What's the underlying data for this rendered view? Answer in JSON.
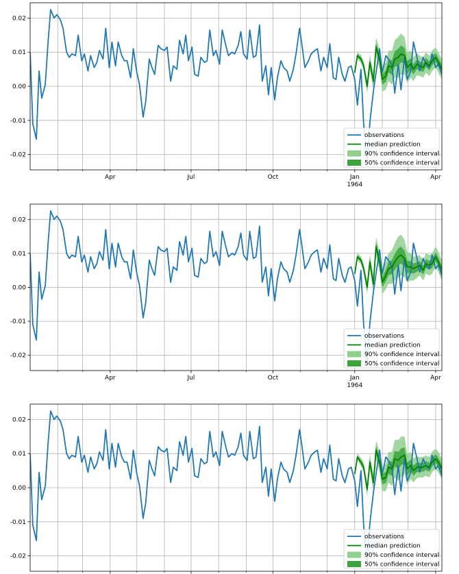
{
  "chart_data": [
    {
      "type": "line",
      "title": "",
      "xlabel": "",
      "ylabel": "",
      "ylim": [
        -0.0245,
        0.0245
      ],
      "yticks": [
        -0.02,
        -0.01,
        0.0,
        0.01,
        0.02
      ],
      "ytick_labels": [
        "-0.02",
        "-0.01",
        "0.00",
        "0.01",
        "0.02"
      ],
      "xlim": [
        "1963-01-01",
        "1964-04-08"
      ],
      "xticks": [
        {
          "date": "1963-04-01",
          "label": "Apr",
          "sublabel": ""
        },
        {
          "date": "1963-07-01",
          "label": "Jul",
          "sublabel": ""
        },
        {
          "date": "1963-10-01",
          "label": "Oct",
          "sublabel": ""
        },
        {
          "date": "1964-01-01",
          "label": "Jan",
          "sublabel": "1964"
        },
        {
          "date": "1964-04-01",
          "label": "Apr",
          "sublabel": ""
        }
      ],
      "grid": true,
      "legend_position": "lower-right",
      "legend": [
        "observations",
        "median prediction",
        "90% confidence interval",
        "50% confidence interval"
      ],
      "colors": {
        "observations": "#1f77b4",
        "median": "#008000",
        "ci90": "#8fd08f",
        "ci50": "#3ca43c"
      },
      "series": [
        {
          "name": "observations",
          "x": [
            "1963-01-01",
            "1963-01-04",
            "1963-01-08",
            "1963-01-11",
            "1963-01-14",
            "1963-01-18",
            "1963-01-21",
            "1963-01-24",
            "1963-01-28",
            "1963-01-31",
            "1963-02-04",
            "1963-02-07",
            "1963-02-11",
            "1963-02-14",
            "1963-02-17",
            "1963-02-21",
            "1963-02-24",
            "1963-02-28",
            "1963-03-03",
            "1963-03-07",
            "1963-03-10",
            "1963-03-14",
            "1963-03-17",
            "1963-03-20",
            "1963-03-24",
            "1963-03-27",
            "1963-03-31",
            "1963-04-03",
            "1963-04-07",
            "1963-04-10",
            "1963-04-14",
            "1963-04-17",
            "1963-04-20",
            "1963-04-24",
            "1963-04-27",
            "1963-05-01",
            "1963-05-04",
            "1963-05-08",
            "1963-05-11",
            "1963-05-15",
            "1963-05-18",
            "1963-05-21",
            "1963-05-25",
            "1963-05-28",
            "1963-06-01",
            "1963-06-04",
            "1963-06-08",
            "1963-06-11",
            "1963-06-15",
            "1963-06-18",
            "1963-06-22",
            "1963-06-25",
            "1963-06-28",
            "1963-07-02",
            "1963-07-05",
            "1963-07-09",
            "1963-07-12",
            "1963-07-16",
            "1963-07-19",
            "1963-07-22",
            "1963-07-26",
            "1963-07-29",
            "1963-08-02",
            "1963-08-05",
            "1963-08-09",
            "1963-08-12",
            "1963-08-16",
            "1963-08-19",
            "1963-08-23",
            "1963-08-26",
            "1963-08-29",
            "1963-09-02",
            "1963-09-05",
            "1963-09-09",
            "1963-09-12",
            "1963-09-16",
            "1963-09-19",
            "1963-09-23",
            "1963-09-26",
            "1963-09-29",
            "1963-10-03",
            "1963-10-06",
            "1963-10-10",
            "1963-10-13",
            "1963-10-17",
            "1963-10-20",
            "1963-10-24",
            "1963-10-27",
            "1963-10-31",
            "1963-11-03",
            "1963-11-06",
            "1963-11-10",
            "1963-11-13",
            "1963-11-17",
            "1963-11-20",
            "1963-11-24",
            "1963-11-27",
            "1963-12-01",
            "1963-12-04",
            "1963-12-08",
            "1963-12-11",
            "1963-12-14",
            "1963-12-18",
            "1963-12-21",
            "1963-12-25",
            "1963-12-28",
            "1964-01-01",
            "1964-01-04",
            "1964-01-08",
            "1964-01-11",
            "1964-01-15",
            "1964-01-18",
            "1964-01-22",
            "1964-01-25",
            "1964-01-29",
            "1964-02-01",
            "1964-02-05",
            "1964-02-08",
            "1964-02-12",
            "1964-02-15",
            "1964-02-19",
            "1964-02-22",
            "1964-02-26",
            "1964-02-29",
            "1964-03-04",
            "1964-03-07",
            "1964-03-11",
            "1964-03-14",
            "1964-03-18",
            "1964-03-21",
            "1964-03-25",
            "1964-03-28",
            "1964-04-01",
            "1964-04-04",
            "1964-04-08"
          ],
          "values": [
            0.01,
            -0.011,
            -0.0155,
            0.0045,
            -0.0035,
            0.0005,
            0.0125,
            0.0225,
            0.02,
            0.021,
            0.0195,
            0.017,
            0.01,
            0.0085,
            0.0095,
            0.009,
            0.015,
            0.0075,
            0.0095,
            0.0045,
            0.009,
            0.0055,
            0.007,
            0.0105,
            0.008,
            0.017,
            0.0055,
            0.013,
            0.006,
            0.013,
            0.009,
            0.0075,
            0.0075,
            0.0025,
            0.011,
            0.004,
            0.0005,
            -0.009,
            -0.0045,
            0.008,
            0.0055,
            0.0035,
            0.012,
            0.011,
            0.0105,
            0.0115,
            0.0015,
            0.006,
            0.005,
            0.0135,
            0.0095,
            0.015,
            0.0075,
            0.0115,
            0.0035,
            0.003,
            0.0085,
            0.007,
            0.0075,
            0.0165,
            0.009,
            0.0105,
            0.0065,
            0.0165,
            0.012,
            0.009,
            0.01,
            0.0095,
            0.012,
            0.016,
            0.0095,
            0.008,
            0.0165,
            0.0085,
            0.009,
            0.018,
            0.0015,
            0.006,
            -0.0025,
            0.0055,
            -0.004,
            0.0025,
            0.0075,
            0.0055,
            0.0045,
            0.0015,
            0.005,
            0.0095,
            0.017,
            0.0115,
            0.0055,
            0.0075,
            0.0095,
            0.0105,
            0.011,
            0.0045,
            0.0085,
            0.0055,
            0.0125,
            0.0025,
            0.002,
            0.0085,
            0.0035,
            0.0015,
            0.0055,
            0.006,
            0.002,
            -0.0055,
            0.005,
            -0.011,
            -0.022,
            -0.0105,
            -0.0015,
            0.004,
            0.011,
            0.004,
            0.009,
            0.008,
            0.006,
            -0.002,
            0.0065,
            -0.001,
            0.0085,
            0.002,
            0.0045,
            0.013,
            0.0085,
            0.0045,
            0.0085,
            0.0065,
            0.0055,
            0.0095,
            0.0055,
            0.0065,
            0.0035
          ]
        },
        {
          "name": "median prediction",
          "x": [
            "1964-01-01",
            "1964-01-04",
            "1964-01-08",
            "1964-01-11",
            "1964-01-15",
            "1964-01-18",
            "1964-01-22",
            "1964-01-25",
            "1964-01-29",
            "1964-02-01",
            "1964-02-05",
            "1964-02-08",
            "1964-02-12",
            "1964-02-15",
            "1964-02-19",
            "1964-02-22",
            "1964-02-26",
            "1964-02-29",
            "1964-03-04",
            "1964-03-07",
            "1964-03-11",
            "1964-03-14",
            "1964-03-18",
            "1964-03-21",
            "1964-03-25",
            "1964-03-28",
            "1964-04-01",
            "1964-04-04",
            "1964-04-08"
          ],
          "values": [
            0.004,
            0.009,
            0.008,
            0.006,
            0.0,
            0.007,
            0.0015,
            0.0115,
            0.008,
            0.002,
            0.003,
            0.006,
            0.0055,
            0.008,
            0.0085,
            0.0095,
            0.009,
            0.0055,
            0.0065,
            0.005,
            0.0065,
            0.006,
            0.0055,
            0.007,
            0.006,
            0.0075,
            0.0085,
            0.007,
            0.005
          ]
        }
      ]
    },
    {
      "type": "line",
      "title": "",
      "xlabel": "",
      "ylabel": "",
      "ylim": [
        -0.0245,
        0.0245
      ],
      "yticks": [
        -0.02,
        -0.01,
        0.0,
        0.01,
        0.02
      ],
      "ytick_labels": [
        "-0.02",
        "-0.01",
        "0.00",
        "0.01",
        "0.02"
      ],
      "xlim": [
        "1963-01-01",
        "1964-04-08"
      ],
      "xticks": [
        {
          "date": "1963-04-01",
          "label": "Apr",
          "sublabel": ""
        },
        {
          "date": "1963-07-01",
          "label": "Jul",
          "sublabel": ""
        },
        {
          "date": "1963-10-01",
          "label": "Oct",
          "sublabel": ""
        },
        {
          "date": "1964-01-01",
          "label": "Jan",
          "sublabel": "1964"
        },
        {
          "date": "1964-04-01",
          "label": "Apr",
          "sublabel": ""
        }
      ],
      "grid": true,
      "legend_position": "lower-right",
      "legend": [
        "observations",
        "median prediction",
        "90% confidence interval",
        "50% confidence interval"
      ],
      "colors": {
        "observations": "#1f77b4",
        "median": "#008000",
        "ci90": "#8fd08f",
        "ci50": "#3ca43c"
      },
      "series": [
        {
          "name": "observations",
          "x": "same as chart 1",
          "values": "same as chart 1"
        },
        {
          "name": "median prediction",
          "x": [
            "1964-01-01",
            "1964-01-04",
            "1964-01-08",
            "1964-01-11",
            "1964-01-15",
            "1964-01-18",
            "1964-01-22",
            "1964-01-25",
            "1964-01-29",
            "1964-02-01",
            "1964-02-05",
            "1964-02-08",
            "1964-02-12",
            "1964-02-15",
            "1964-02-19",
            "1964-02-22",
            "1964-02-26",
            "1964-02-29",
            "1964-03-04",
            "1964-03-07",
            "1964-03-11",
            "1964-03-14",
            "1964-03-18",
            "1964-03-21",
            "1964-03-25",
            "1964-03-28",
            "1964-04-01",
            "1964-04-04",
            "1964-04-08"
          ],
          "values": [
            0.004,
            0.009,
            0.008,
            0.0055,
            0.0,
            0.0075,
            0.001,
            0.012,
            0.0075,
            0.0015,
            0.0035,
            0.0055,
            0.006,
            0.0075,
            0.009,
            0.0095,
            0.0085,
            0.006,
            0.006,
            0.0055,
            0.006,
            0.0065,
            0.005,
            0.007,
            0.0065,
            0.007,
            0.009,
            0.0075,
            0.005
          ]
        }
      ]
    },
    {
      "type": "line",
      "title": "",
      "xlabel": "",
      "ylabel": "",
      "ylim": [
        -0.0245,
        0.0245
      ],
      "yticks": [
        -0.02,
        -0.01,
        0.0,
        0.01,
        0.02
      ],
      "ytick_labels": [
        "-0.02",
        "-0.01",
        "0.00",
        "0.01",
        "0.02"
      ],
      "xlim": [
        "1963-01-01",
        "1964-04-08"
      ],
      "xticks": [],
      "grid": true,
      "legend_position": "lower-right",
      "legend": [
        "observations",
        "median prediction",
        "90% confidence interval",
        "50% confidence interval"
      ],
      "colors": {
        "observations": "#1f77b4",
        "median": "#008000",
        "ci90": "#8fd08f",
        "ci50": "#3ca43c"
      },
      "series": [
        {
          "name": "observations",
          "x": "same as chart 1",
          "values": "same as chart 1"
        },
        {
          "name": "median prediction",
          "x": [
            "1964-01-01",
            "1964-01-04",
            "1964-01-08",
            "1964-01-11",
            "1964-01-15",
            "1964-01-18",
            "1964-01-22",
            "1964-01-25",
            "1964-01-29",
            "1964-02-01",
            "1964-02-05",
            "1964-02-08",
            "1964-02-12",
            "1964-02-15",
            "1964-02-19",
            "1964-02-22",
            "1964-02-26",
            "1964-02-29",
            "1964-03-04",
            "1964-03-07",
            "1964-03-11",
            "1964-03-14",
            "1964-03-18",
            "1964-03-21",
            "1964-03-25",
            "1964-03-28",
            "1964-04-01",
            "1964-04-04",
            "1964-04-08"
          ],
          "values": [
            0.004,
            0.009,
            0.0075,
            0.006,
            -0.0005,
            0.0075,
            0.0015,
            0.011,
            0.0075,
            0.0025,
            0.003,
            0.006,
            0.0055,
            0.0085,
            0.008,
            0.009,
            0.0095,
            0.0055,
            0.0065,
            0.005,
            0.006,
            0.006,
            0.006,
            0.0065,
            0.006,
            0.0075,
            0.0085,
            0.0075,
            0.0055
          ]
        }
      ]
    }
  ],
  "bands": {
    "forecast_x": [
      "1964-01-01",
      "1964-01-04",
      "1964-01-08",
      "1964-01-11",
      "1964-01-15",
      "1964-01-18",
      "1964-01-22",
      "1964-01-25",
      "1964-01-29",
      "1964-02-01",
      "1964-02-05",
      "1964-02-08",
      "1964-02-12",
      "1964-02-15",
      "1964-02-19",
      "1964-02-22",
      "1964-02-26",
      "1964-02-29",
      "1964-03-04",
      "1964-03-07",
      "1964-03-11",
      "1964-03-14",
      "1964-03-18",
      "1964-03-21",
      "1964-03-25",
      "1964-03-28",
      "1964-04-01",
      "1964-04-04",
      "1964-04-08"
    ],
    "ci90_halfwidth": [
      0.0008,
      0.001,
      0.0012,
      0.0015,
      0.002,
      0.0022,
      0.0025,
      0.0028,
      0.003,
      0.0035,
      0.004,
      0.0045,
      0.005,
      0.0055,
      0.006,
      0.006,
      0.0055,
      0.0045,
      0.004,
      0.0035,
      0.0032,
      0.003,
      0.003,
      0.003,
      0.003,
      0.003,
      0.003,
      0.003,
      0.003
    ],
    "ci50_halfwidth": [
      0.0003,
      0.0004,
      0.0005,
      0.0006,
      0.0008,
      0.0009,
      0.001,
      0.0012,
      0.0013,
      0.0015,
      0.0017,
      0.0019,
      0.0021,
      0.0023,
      0.0025,
      0.0025,
      0.0023,
      0.0019,
      0.0017,
      0.0015,
      0.0014,
      0.0013,
      0.0013,
      0.0013,
      0.0013,
      0.0013,
      0.0013,
      0.0013,
      0.0013
    ]
  }
}
